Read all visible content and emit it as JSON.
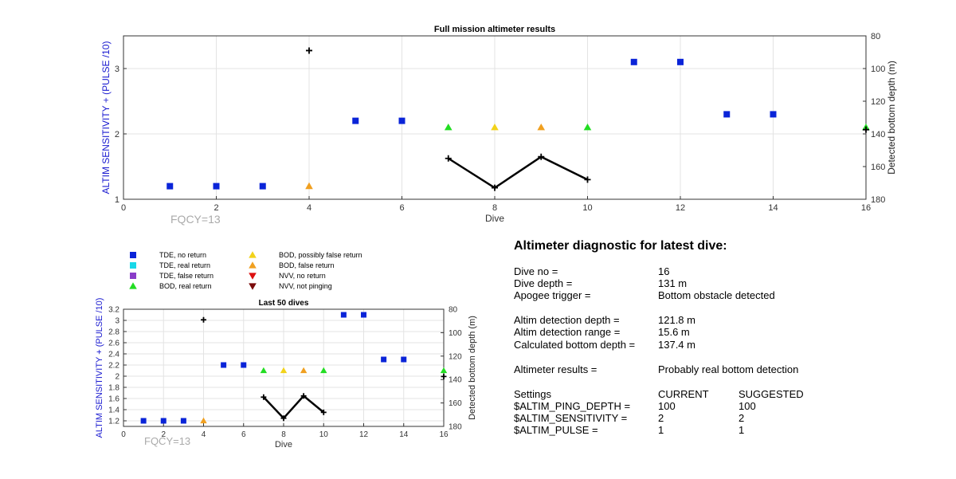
{
  "chart_data": [
    {
      "type": "scatter",
      "title": "Full mission altimeter results",
      "xlabel": "Dive",
      "ylabel": "ALTIM SENSITIVITY + (PULSE /10)",
      "y2label": "Detected bottom depth (m)",
      "xlim": [
        0,
        16
      ],
      "ylim": [
        1,
        3.5
      ],
      "y2lim": [
        80,
        180
      ],
      "y2_reversed": true,
      "xticks": [
        0,
        2,
        4,
        6,
        8,
        10,
        12,
        14,
        16
      ],
      "yticks": [
        1,
        2,
        3
      ],
      "y2ticks": [
        80,
        100,
        120,
        140,
        160,
        180
      ],
      "grid": true,
      "annotation": "FQCY=13",
      "series": [
        {
          "name": "TDE, no return",
          "marker": "square",
          "color": "#0a24d8",
          "points": [
            [
              1,
              1.2
            ],
            [
              2,
              1.2
            ],
            [
              3,
              1.2
            ],
            [
              5,
              2.2
            ],
            [
              6,
              2.2
            ],
            [
              11,
              3.1
            ],
            [
              12,
              3.1
            ],
            [
              13,
              2.3
            ],
            [
              14,
              2.3
            ]
          ]
        },
        {
          "name": "BOD, real return",
          "marker": "triangle-up",
          "color": "#22dd22",
          "points": [
            [
              7,
              2.1
            ],
            [
              10,
              2.1
            ],
            [
              16,
              2.1
            ]
          ]
        },
        {
          "name": "BOD, possibly false return",
          "marker": "triangle-up",
          "color": "#f2d21a",
          "points": [
            [
              8,
              2.1
            ]
          ]
        },
        {
          "name": "BOD, false return",
          "marker": "triangle-up",
          "color": "#f0a020",
          "points": [
            [
              4,
              1.2
            ],
            [
              9,
              2.1
            ]
          ]
        },
        {
          "name": "",
          "axis": "right",
          "marker": "plus",
          "color": "#000000",
          "line_segments": [
            [
              7,
              8,
              9,
              10
            ]
          ],
          "points": [
            [
              4,
              89
            ],
            [
              7,
              155
            ],
            [
              8,
              173
            ],
            [
              9,
              154
            ],
            [
              10,
              168
            ],
            [
              16,
              137.4
            ]
          ]
        }
      ]
    },
    {
      "type": "scatter",
      "title": "Last 50 dives",
      "xlabel": "Dive",
      "ylabel": "ALTIM SENSITIVITY + (PULSE /10)",
      "y2label": "Detected bottom depth (m)",
      "xlim": [
        0,
        16
      ],
      "ylim": [
        1.1,
        3.2
      ],
      "y2lim": [
        80,
        180
      ],
      "y2_reversed": true,
      "xticks": [
        0,
        2,
        4,
        6,
        8,
        10,
        12,
        14,
        16
      ],
      "yticks": [
        1.2,
        1.4,
        1.6,
        1.8,
        2,
        2.2,
        2.4,
        2.6,
        2.8,
        3,
        3.2
      ],
      "y2ticks": [
        80,
        100,
        120,
        140,
        160,
        180
      ],
      "grid": true,
      "annotation": "FQCY=13",
      "series": [
        {
          "name": "TDE, no return",
          "marker": "square",
          "color": "#0a24d8",
          "points": [
            [
              1,
              1.2
            ],
            [
              2,
              1.2
            ],
            [
              3,
              1.2
            ],
            [
              5,
              2.2
            ],
            [
              6,
              2.2
            ],
            [
              11,
              3.1
            ],
            [
              12,
              3.1
            ],
            [
              13,
              2.3
            ],
            [
              14,
              2.3
            ]
          ]
        },
        {
          "name": "BOD, real return",
          "marker": "triangle-up",
          "color": "#22dd22",
          "points": [
            [
              7,
              2.1
            ],
            [
              10,
              2.1
            ],
            [
              16,
              2.1
            ]
          ]
        },
        {
          "name": "BOD, possibly false return",
          "marker": "triangle-up",
          "color": "#f2d21a",
          "points": [
            [
              8,
              2.1
            ]
          ]
        },
        {
          "name": "BOD, false return",
          "marker": "triangle-up",
          "color": "#f0a020",
          "points": [
            [
              4,
              1.2
            ],
            [
              9,
              2.1
            ]
          ]
        },
        {
          "name": "",
          "axis": "right",
          "marker": "plus",
          "color": "#000000",
          "line_segments": [
            [
              7,
              8,
              9,
              10
            ]
          ],
          "points": [
            [
              4,
              89
            ],
            [
              7,
              155
            ],
            [
              8,
              173
            ],
            [
              9,
              154
            ],
            [
              10,
              168
            ],
            [
              16,
              137.4
            ]
          ]
        }
      ]
    }
  ],
  "legend": {
    "items": [
      {
        "label": "TDE, no return",
        "marker": "square",
        "color": "#0a24d8"
      },
      {
        "label": "TDE, real return",
        "marker": "square",
        "color": "#18d8e8"
      },
      {
        "label": "TDE, false return",
        "marker": "square",
        "color": "#8a3cc8"
      },
      {
        "label": "BOD, real return",
        "marker": "triangle-up",
        "color": "#22dd22"
      },
      {
        "label": "BOD, possibly false return",
        "marker": "triangle-up",
        "color": "#f2d21a"
      },
      {
        "label": "BOD, false return",
        "marker": "triangle-up",
        "color": "#f0a020"
      },
      {
        "label": "NVV, no return",
        "marker": "triangle-down",
        "color": "#dd1010"
      },
      {
        "label": "NVV, not pinging",
        "marker": "triangle-down",
        "color": "#7a0a0a"
      }
    ]
  },
  "diagnostic": {
    "title": "Altimeter diagnostic for latest dive:",
    "rows": [
      {
        "label": "Dive no =",
        "value": "16"
      },
      {
        "label": "Dive depth =",
        "value": "131 m"
      },
      {
        "label": "Apogee trigger =",
        "value": "Bottom obstacle detected"
      },
      {
        "label": "Altim detection depth =",
        "value": "121.8 m"
      },
      {
        "label": "Altim detection range =",
        "value": "15.6 m"
      },
      {
        "label": "Calculated bottom depth =",
        "value": "137.4 m"
      },
      {
        "label": "Altimeter results =",
        "value": "Probably real bottom detection"
      }
    ],
    "settings_header": {
      "label": "Settings",
      "current": "CURRENT",
      "suggested": "SUGGESTED"
    },
    "settings": [
      {
        "label": "$ALTIM_PING_DEPTH =",
        "current": "100",
        "suggested": "100"
      },
      {
        "label": "$ALTIM_SENSITIVITY =",
        "current": "2",
        "suggested": "2"
      },
      {
        "label": "$ALTIM_PULSE =",
        "current": "1",
        "suggested": "1"
      }
    ]
  },
  "colors": {
    "ylabel_blue": "#1a1ad0",
    "annotation_gray": "#aaaaaa",
    "grid": "#e3e3e3"
  }
}
